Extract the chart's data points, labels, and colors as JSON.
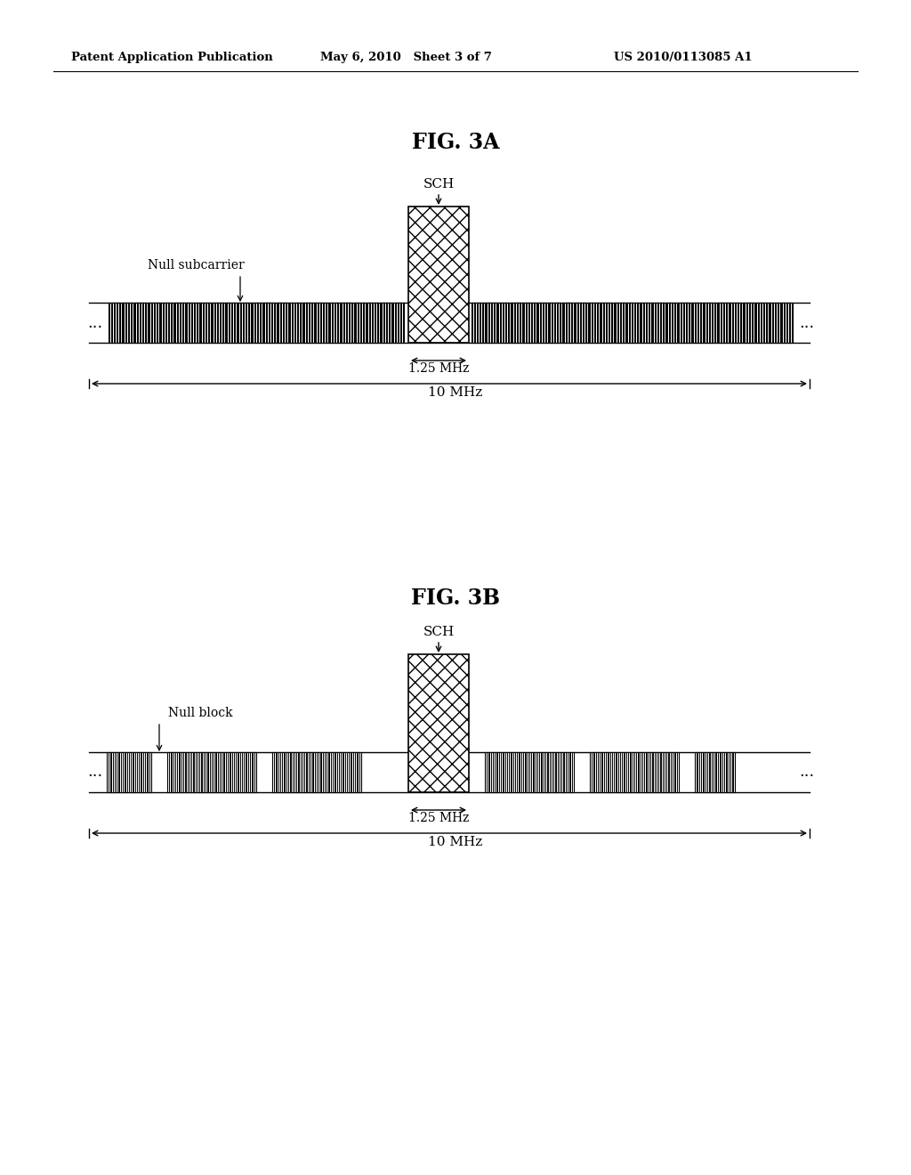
{
  "bg_color": "#ffffff",
  "header_left": "Patent Application Publication",
  "header_mid": "May 6, 2010   Sheet 3 of 7",
  "header_right": "US 2010/0113085 A1",
  "fig3a_title": "FIG. 3A",
  "fig3b_title": "FIG. 3B",
  "sch_label": "SCH",
  "null_subcarrier_label": "Null subcarrier",
  "null_block_label": "Null block",
  "label_125_mhz": "1.25 MHz",
  "label_10_mhz": "10 MHz",
  "dots": "..."
}
